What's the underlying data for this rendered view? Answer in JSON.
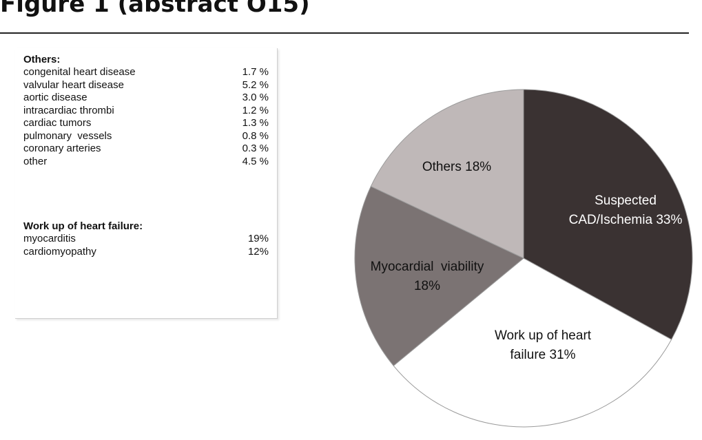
{
  "figure": {
    "title": "Figure 1 (abstract O15)"
  },
  "breakdown": {
    "others": {
      "heading": "Others:",
      "items": [
        {
          "label": "congenital heart disease",
          "value": "1.7 %"
        },
        {
          "label": "valvular heart disease",
          "value": "5.2 %"
        },
        {
          "label": "aortic disease",
          "value": "3.0 %"
        },
        {
          "label": "intracardiac thrombi",
          "value": "1.2 %"
        },
        {
          "label": "cardiac tumors",
          "value": "1.3 %"
        },
        {
          "label": "pulmonary  vessels",
          "value": "0.8 %"
        },
        {
          "label": "coronary arteries",
          "value": "0.3 %"
        },
        {
          "label": "other",
          "value": "4.5 %"
        }
      ]
    },
    "heart_failure": {
      "heading": "Work up of heart failure:",
      "items": [
        {
          "label": "myocarditis",
          "value": "19%"
        },
        {
          "label": "cardiomyopathy",
          "value": "12%"
        }
      ]
    }
  },
  "chart_data": {
    "type": "pie",
    "title": "",
    "slices": [
      {
        "label": [
          "Suspected",
          "CAD/Ischemia 33%"
        ],
        "value": 33,
        "color": "#3a3232",
        "text_color": "#ffffff"
      },
      {
        "label": [
          "Work up of heart",
          "failure 31%"
        ],
        "value": 31,
        "color": "#ffffff",
        "text_color": "#111111"
      },
      {
        "label": [
          "Myocardial  viability",
          "18%"
        ],
        "value": 18,
        "color": "#7b7373",
        "text_color": "#111111"
      },
      {
        "label": [
          "Others 18%"
        ],
        "value": 18,
        "color": "#bfb8b8",
        "text_color": "#111111"
      }
    ]
  }
}
